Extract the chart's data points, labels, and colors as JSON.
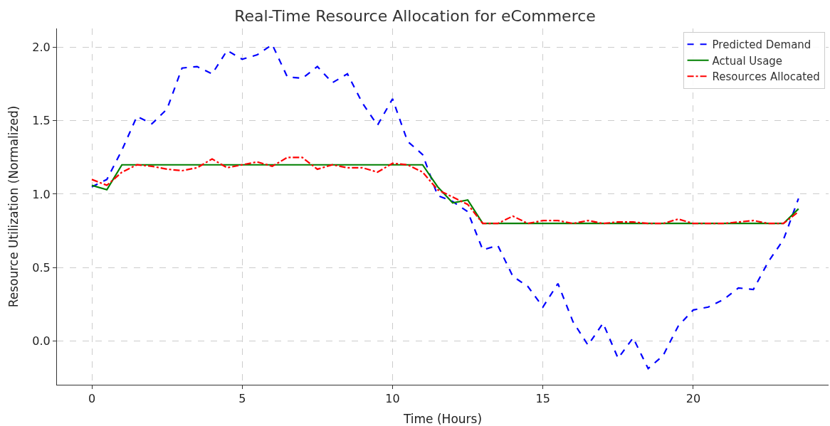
{
  "chart_data": {
    "type": "line",
    "title": "Real-Time Resource Allocation for eCommerce",
    "xlabel": "Time (Hours)",
    "ylabel": "Resource Utilization (Normalized)",
    "x": [
      0,
      0.5,
      1,
      1.5,
      2,
      2.5,
      3,
      3.5,
      4,
      4.5,
      5,
      5.5,
      6,
      6.5,
      7,
      7.5,
      8,
      8.5,
      9,
      9.5,
      10,
      10.5,
      11,
      11.5,
      12,
      12.5,
      13,
      13.5,
      14,
      14.5,
      15,
      15.5,
      16,
      16.5,
      17,
      17.5,
      18,
      18.5,
      19,
      19.5,
      20,
      20.5,
      21,
      21.5,
      22,
      22.5,
      23,
      23.5
    ],
    "series": [
      {
        "name": "Predicted Demand",
        "color": "#0000ff",
        "line_style": "dashed",
        "values": [
          1.05,
          1.1,
          1.3,
          1.53,
          1.48,
          1.58,
          1.86,
          1.87,
          1.82,
          1.98,
          1.92,
          1.95,
          2.02,
          1.8,
          1.79,
          1.87,
          1.76,
          1.82,
          1.62,
          1.47,
          1.65,
          1.36,
          1.27,
          0.99,
          0.95,
          0.88,
          0.62,
          0.65,
          0.44,
          0.37,
          0.23,
          0.39,
          0.13,
          -0.03,
          0.12,
          -0.12,
          0.02,
          -0.19,
          -0.1,
          0.1,
          0.21,
          0.23,
          0.28,
          0.36,
          0.35,
          0.54,
          0.69,
          0.97
        ]
      },
      {
        "name": "Actual Usage",
        "color": "#008000",
        "line_style": "solid",
        "values": [
          1.06,
          1.03,
          1.2,
          1.2,
          1.2,
          1.2,
          1.2,
          1.2,
          1.2,
          1.2,
          1.2,
          1.2,
          1.2,
          1.2,
          1.2,
          1.2,
          1.2,
          1.2,
          1.2,
          1.2,
          1.2,
          1.2,
          1.2,
          1.05,
          0.94,
          0.96,
          0.8,
          0.8,
          0.8,
          0.8,
          0.8,
          0.8,
          0.8,
          0.8,
          0.8,
          0.8,
          0.8,
          0.8,
          0.8,
          0.8,
          0.8,
          0.8,
          0.8,
          0.8,
          0.8,
          0.8,
          0.8,
          0.9
        ]
      },
      {
        "name": "Resources Allocated",
        "color": "#ff0000",
        "line_style": "dashdot",
        "values": [
          1.1,
          1.06,
          1.15,
          1.2,
          1.19,
          1.17,
          1.16,
          1.18,
          1.24,
          1.18,
          1.2,
          1.22,
          1.19,
          1.25,
          1.25,
          1.17,
          1.2,
          1.18,
          1.18,
          1.15,
          1.21,
          1.2,
          1.15,
          1.03,
          0.98,
          0.93,
          0.8,
          0.8,
          0.85,
          0.8,
          0.82,
          0.82,
          0.8,
          0.82,
          0.8,
          0.81,
          0.81,
          0.8,
          0.8,
          0.83,
          0.8,
          0.8,
          0.8,
          0.81,
          0.82,
          0.8,
          0.8,
          0.88
        ]
      }
    ],
    "xlim": [
      -1.16,
      24.5
    ],
    "ylim": [
      -0.3,
      2.13
    ],
    "xticks": [
      0,
      5,
      10,
      15,
      20
    ],
    "yticks": [
      {
        "value": 0,
        "label": "0.0"
      },
      0.5,
      {
        "value": 1,
        "label": "1.0"
      },
      1.5,
      {
        "value": 2,
        "label": "2.0"
      }
    ],
    "grid": true,
    "legend": "top right",
    "marker": "none"
  }
}
